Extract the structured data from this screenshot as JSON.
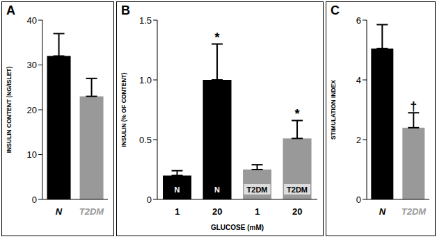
{
  "chart_data": [
    {
      "type": "bar",
      "title": "A",
      "y_label": "INSULIN CONTENT (NG/ISLET)",
      "categories": [
        "N",
        "T2DM"
      ],
      "values": [
        32,
        23
      ],
      "errors": [
        5,
        4
      ],
      "colors": [
        "#000000",
        "#999999"
      ],
      "ylim": [
        0,
        40
      ],
      "yticks": [
        0,
        10,
        20,
        30,
        40
      ]
    },
    {
      "type": "bar",
      "title": "B",
      "y_label": "INSULIN (% OF CONTENT)",
      "x_label": "GLUCOSE (mM)",
      "categories": [
        "1",
        "20",
        "1",
        "20"
      ],
      "values": [
        0.2,
        1.0,
        0.25,
        0.51
      ],
      "errors": [
        0.04,
        0.3,
        0.04,
        0.15
      ],
      "bar_labels": [
        "N",
        "N",
        "T2DM",
        "T2DM"
      ],
      "annotations": [
        null,
        "*",
        null,
        "*"
      ],
      "colors": [
        "#000000",
        "#000000",
        "#999999",
        "#999999"
      ],
      "ylim": [
        0,
        1.5
      ],
      "yticks": [
        0,
        0.5,
        {
          "value": 1,
          "label": "1.0"
        },
        1.5
      ]
    },
    {
      "type": "bar",
      "title": "C",
      "y_label": "STIMULATION INDEX",
      "categories": [
        "N",
        "T2DM"
      ],
      "values": [
        5.05,
        2.4
      ],
      "errors": [
        0.8,
        0.5
      ],
      "annotations": [
        null,
        "†"
      ],
      "colors": [
        "#000000",
        "#999999"
      ],
      "ylim": [
        0,
        6
      ],
      "yticks": [
        0,
        2,
        4,
        6
      ]
    }
  ]
}
